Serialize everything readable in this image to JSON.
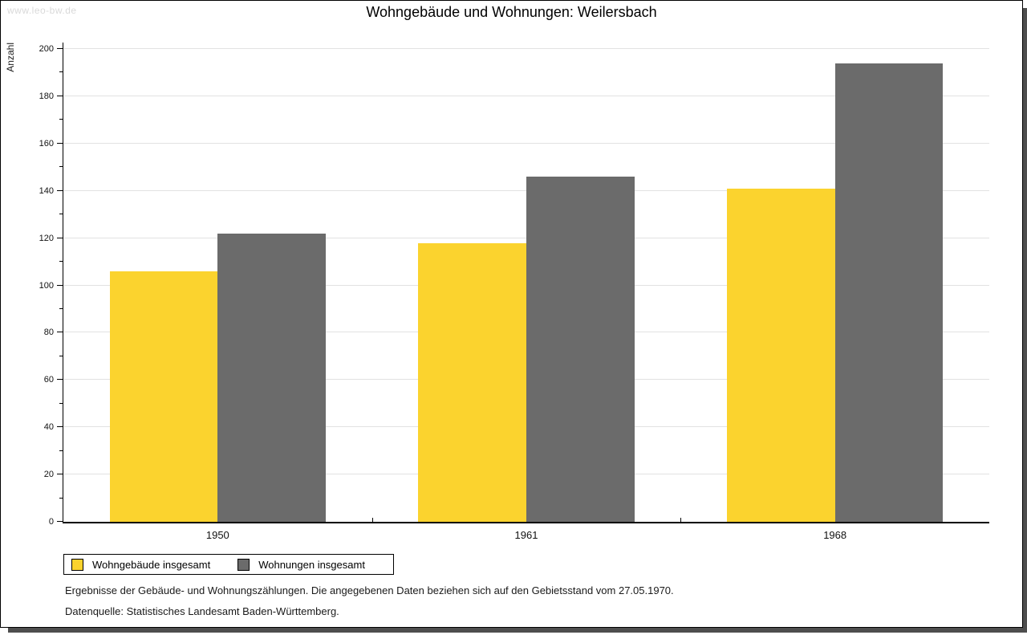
{
  "watermark": "www.leo-bw.de",
  "chart_data": {
    "type": "bar",
    "title": "Wohngebäude und Wohnungen: Weilersbach",
    "categories": [
      "1950",
      "1961",
      "1968"
    ],
    "series": [
      {
        "name": "Wohngebäude insgesamt",
        "color": "#FBD32E",
        "values": [
          106,
          118,
          141
        ]
      },
      {
        "name": "Wohnungen insgesamt",
        "color": "#6B6B6B",
        "values": [
          122,
          146,
          194
        ]
      }
    ],
    "xlabel": "",
    "ylabel": "Anzahl",
    "ylim": [
      0,
      200
    ],
    "ytick_step": 20,
    "minor_tick_step": 10,
    "grid": "horizontal-major",
    "gridline_color": "#e2e2e2",
    "axis_color": "#000000",
    "legend_position": "bottom-left"
  },
  "footnotes": [
    "Ergebnisse der Gebäude- und Wohnungszählungen. Die angegebenen Daten beziehen sich auf den Gebietsstand vom 27.05.1970.",
    "Datenquelle: Statistisches Landesamt Baden-Württemberg."
  ]
}
